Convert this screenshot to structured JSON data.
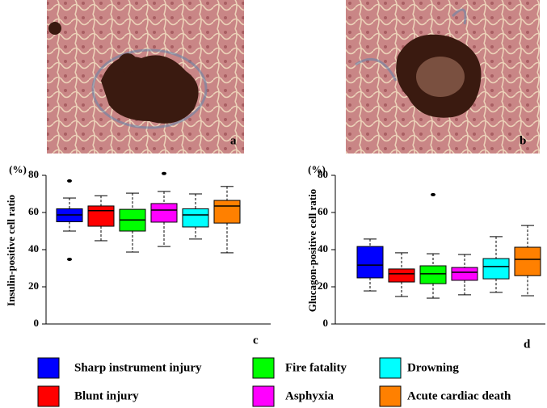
{
  "panels": [
    {
      "label": "a"
    },
    {
      "label": "b"
    }
  ],
  "legend": [
    {
      "name": "Sharp instrument injury",
      "color": "#0000ff"
    },
    {
      "name": "Blunt injury",
      "color": "#ff0000"
    },
    {
      "name": "Fire fatality",
      "color": "#00ff00"
    },
    {
      "name": "Asphyxia",
      "color": "#ff00ff"
    },
    {
      "name": "Drowning",
      "color": "#00ffff"
    },
    {
      "name": "Acute cardiac death",
      "color": "#ff8000"
    }
  ],
  "chart_data": [
    {
      "type": "box",
      "unit": "(%)",
      "y_label": "Insulin-positive cell ratio",
      "panel_label": "c",
      "ylim": [
        0,
        80
      ],
      "yticks": [
        0,
        20,
        40,
        60,
        80
      ],
      "boxes": [
        {
          "min": 50,
          "q1": 55,
          "median": 58.7,
          "q3": 62,
          "max": 67.8,
          "outliers": [
            77,
            34.8
          ]
        },
        {
          "min": 44.8,
          "q1": 52.6,
          "median": 61,
          "q3": 63.5,
          "max": 69,
          "outliers": []
        },
        {
          "min": 38.7,
          "q1": 50,
          "median": 56,
          "q3": 61.7,
          "max": 70.4,
          "outliers": []
        },
        {
          "min": 41.7,
          "q1": 54.8,
          "median": 61.3,
          "q3": 64.8,
          "max": 71.3,
          "outliers": [
            81
          ]
        },
        {
          "min": 45.7,
          "q1": 52.2,
          "median": 58.7,
          "q3": 62,
          "max": 70,
          "outliers": []
        },
        {
          "min": 38.3,
          "q1": 54.3,
          "median": 63.5,
          "q3": 66.5,
          "max": 74,
          "outliers": []
        }
      ]
    },
    {
      "type": "box",
      "unit": "(%)",
      "y_label": "Glucagon-positive cell ratio",
      "panel_label": "d",
      "ylim": [
        0,
        80
      ],
      "yticks": [
        0,
        20,
        40,
        60,
        80
      ],
      "boxes": [
        {
          "min": 17.8,
          "q1": 24.8,
          "median": 31.7,
          "q3": 41.7,
          "max": 45.7,
          "outliers": []
        },
        {
          "min": 14.8,
          "q1": 22.6,
          "median": 27,
          "q3": 29.6,
          "max": 38.3,
          "outliers": []
        },
        {
          "min": 13.9,
          "q1": 21.7,
          "median": 27,
          "q3": 31.3,
          "max": 37.8,
          "outliers": [
            69.6
          ]
        },
        {
          "min": 15.7,
          "q1": 23.5,
          "median": 27.8,
          "q3": 30.4,
          "max": 37.4,
          "outliers": []
        },
        {
          "min": 17,
          "q1": 24.3,
          "median": 30.9,
          "q3": 35.2,
          "max": 47,
          "outliers": []
        },
        {
          "min": 15.2,
          "q1": 26,
          "median": 34.8,
          "q3": 41.3,
          "max": 53,
          "outliers": []
        }
      ]
    }
  ]
}
